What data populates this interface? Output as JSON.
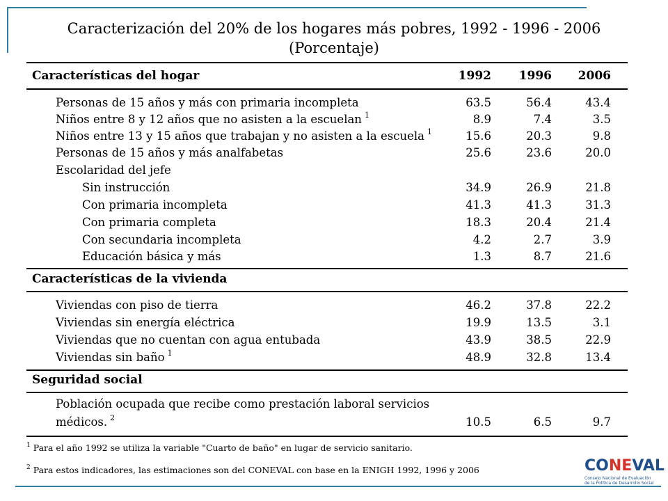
{
  "title": {
    "line1": "Caracterización del 20% de los hogares más pobres, 1992 - 1996 - 2006",
    "line2": "(Porcentaje)"
  },
  "columns": [
    "1992",
    "1996",
    "2006"
  ],
  "sections": [
    {
      "heading": "Características del hogar",
      "rows": [
        {
          "label": "Personas de 15 años y más con primaria incompleta",
          "note": "",
          "values": [
            "63.5",
            "56.4",
            "43.4"
          ]
        },
        {
          "label": "Niños entre 8 y 12 años que no asisten a la escuelan",
          "note": "1",
          "values": [
            "8.9",
            "7.4",
            "3.5"
          ]
        },
        {
          "label": "Niños entre 13 y 15 años que trabajan y no asisten a la escuela",
          "note": "1",
          "values": [
            "15.6",
            "20.3",
            "9.8"
          ]
        },
        {
          "label": "Personas de 15 años y más analfabetas",
          "note": "",
          "values": [
            "25.6",
            "23.6",
            "20.0"
          ]
        },
        {
          "label": "Escolaridad del jefe",
          "note": "",
          "values": [
            "",
            "",
            ""
          ]
        },
        {
          "label": "Sin instrucción",
          "note": "",
          "values": [
            "34.9",
            "26.9",
            "21.8"
          ]
        },
        {
          "label": "Con primaria incompleta",
          "note": "",
          "values": [
            "41.3",
            "41.3",
            "31.3"
          ]
        },
        {
          "label": "Con primaria completa",
          "note": "",
          "values": [
            "18.3",
            "20.4",
            "21.4"
          ]
        },
        {
          "label": "Con secundaria incompleta",
          "note": "",
          "values": [
            "4.2",
            "2.7",
            "3.9"
          ]
        },
        {
          "label": "Educación básica y más",
          "note": "",
          "values": [
            "1.3",
            "8.7",
            "21.6"
          ]
        }
      ]
    },
    {
      "heading": "Características de la vivienda",
      "rows": [
        {
          "label": "Viviendas con piso de tierra",
          "note": "",
          "values": [
            "46.2",
            "37.8",
            "22.2"
          ]
        },
        {
          "label": "Viviendas sin energía eléctrica",
          "note": "",
          "values": [
            "19.9",
            "13.5",
            "3.1"
          ]
        },
        {
          "label": "Viviendas que no cuentan con agua entubada",
          "note": "",
          "values": [
            "43.9",
            "38.5",
            "22.9"
          ]
        },
        {
          "label": "Viviendas sin baño",
          "note": "1",
          "values": [
            "48.9",
            "32.8",
            "13.4"
          ]
        }
      ]
    },
    {
      "heading": "Seguridad social",
      "rows": [
        {
          "label_line1": "Población ocupada que recibe como prestación laboral servicios",
          "label_line2": "médicos.",
          "note": "2",
          "values": [
            "10.5",
            "6.5",
            "9.7"
          ]
        }
      ]
    }
  ],
  "footnotes": [
    {
      "mark": "1",
      "text": "Para el año 1992 se utiliza la variable \"Cuarto de baño\" en lugar de servicio sanitario."
    },
    {
      "mark": "2",
      "text": "Para estos indicadores, las estimaciones son del CONEVAL con base en la ENIGH 1992, 1996 y 2006"
    }
  ],
  "logo": {
    "part1": "CO",
    "part2": "NE",
    "part3": "VAL",
    "sub1": "Consejo Nacional de Evaluación",
    "sub2": "de la Política de Desarrollo Social"
  },
  "colors": {
    "frame": "#2e7fa3",
    "logo_blue": "#1e4f8c",
    "logo_red": "#d6332a"
  }
}
